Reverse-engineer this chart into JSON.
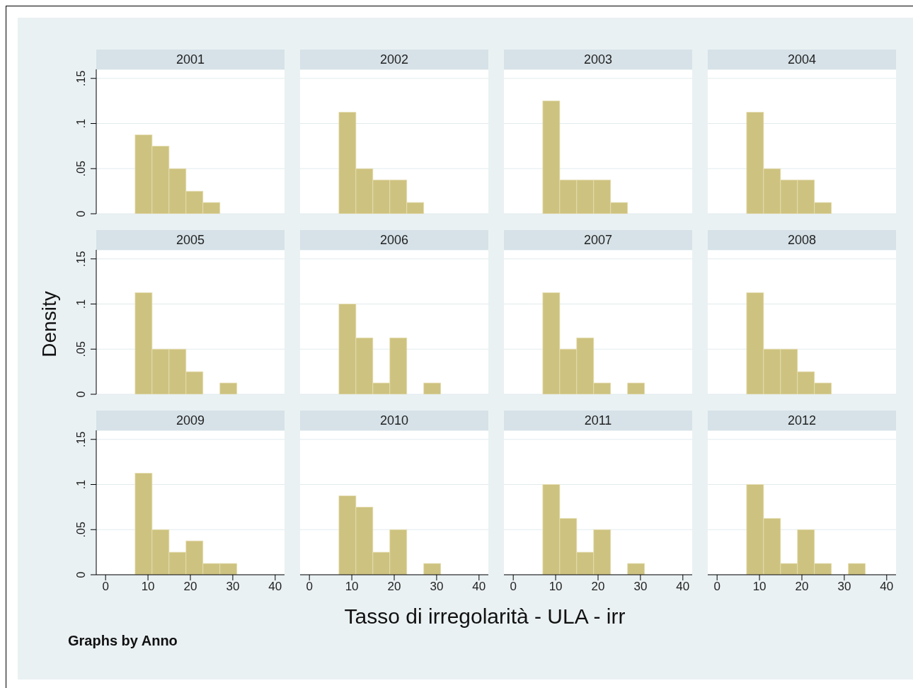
{
  "chart_data": [
    {
      "type": "histogram",
      "title": "2001",
      "bins": [
        7,
        11,
        15,
        19,
        23,
        27,
        31,
        35
      ],
      "values": [
        0.0875,
        0.075,
        0.05,
        0.025,
        0.0125,
        0,
        0
      ],
      "color": "#cdc27f",
      "xlim": [
        -2.2,
        42.2
      ],
      "ylim": [
        0,
        0.16
      ],
      "yticks": [
        0,
        {
          "value": 0.05,
          "label": ".05"
        },
        {
          "value": 0.1,
          "label": ".1"
        },
        {
          "value": 0.15,
          "label": ".15"
        }
      ],
      "grid": "y",
      "tick_labels": "y"
    },
    {
      "type": "histogram",
      "title": "2002",
      "bins": [
        7,
        11,
        15,
        19,
        23,
        27,
        31,
        35
      ],
      "values": [
        0.1125,
        0.05,
        0.0375,
        0.0375,
        0.0125,
        0,
        0
      ],
      "color": "#cdc27f",
      "xlim": [
        -2.2,
        42.2
      ],
      "ylim": [
        0,
        0.16
      ],
      "yticks": [
        0,
        0.05,
        0.1,
        0.15
      ],
      "grid": "y",
      "tick_labels": false
    },
    {
      "type": "histogram",
      "title": "2003",
      "bins": [
        7,
        11,
        15,
        19,
        23,
        27,
        31,
        35
      ],
      "values": [
        0.125,
        0.0375,
        0.0375,
        0.0375,
        0.0125,
        0,
        0
      ],
      "color": "#cdc27f",
      "xlim": [
        -2.2,
        42.2
      ],
      "ylim": [
        0,
        0.16
      ],
      "yticks": [
        0,
        0.05,
        0.1,
        0.15
      ],
      "grid": "y",
      "tick_labels": false
    },
    {
      "type": "histogram",
      "title": "2004",
      "bins": [
        7,
        11,
        15,
        19,
        23,
        27,
        31,
        35
      ],
      "values": [
        0.1125,
        0.05,
        0.0375,
        0.0375,
        0.0125,
        0,
        0
      ],
      "color": "#cdc27f",
      "xlim": [
        -2.2,
        42.2
      ],
      "ylim": [
        0,
        0.16
      ],
      "yticks": [
        0,
        0.05,
        0.1,
        0.15
      ],
      "grid": "y",
      "tick_labels": false
    },
    {
      "type": "histogram",
      "title": "2005",
      "ylabel": "Density",
      "bins": [
        7,
        11,
        15,
        19,
        23,
        27,
        31,
        35
      ],
      "values": [
        0.1125,
        0.05,
        0.05,
        0.025,
        0,
        0.0125,
        0
      ],
      "color": "#cdc27f",
      "xlim": [
        -2.2,
        42.2
      ],
      "ylim": [
        0,
        0.16
      ],
      "yticks": [
        0,
        {
          "value": 0.05,
          "label": ".05"
        },
        {
          "value": 0.1,
          "label": ".1"
        },
        {
          "value": 0.15,
          "label": ".15"
        }
      ],
      "grid": "y",
      "tick_labels": "y"
    },
    {
      "type": "histogram",
      "title": "2006",
      "bins": [
        7,
        11,
        15,
        19,
        23,
        27,
        31,
        35
      ],
      "values": [
        0.1,
        0.0625,
        0.0125,
        0.0625,
        0,
        0.0125,
        0
      ],
      "color": "#cdc27f",
      "xlim": [
        -2.2,
        42.2
      ],
      "ylim": [
        0,
        0.16
      ],
      "yticks": [
        0,
        0.05,
        0.1,
        0.15
      ],
      "grid": "y",
      "tick_labels": false
    },
    {
      "type": "histogram",
      "title": "2007",
      "bins": [
        7,
        11,
        15,
        19,
        23,
        27,
        31,
        35
      ],
      "values": [
        0.1125,
        0.05,
        0.0625,
        0.0125,
        0,
        0.0125,
        0
      ],
      "color": "#cdc27f",
      "xlim": [
        -2.2,
        42.2
      ],
      "ylim": [
        0,
        0.16
      ],
      "yticks": [
        0,
        0.05,
        0.1,
        0.15
      ],
      "grid": "y",
      "tick_labels": false
    },
    {
      "type": "histogram",
      "title": "2008",
      "bins": [
        7,
        11,
        15,
        19,
        23,
        27,
        31,
        35
      ],
      "values": [
        0.1125,
        0.05,
        0.05,
        0.025,
        0.0125,
        0,
        0
      ],
      "color": "#cdc27f",
      "xlim": [
        -2.2,
        42.2
      ],
      "ylim": [
        0,
        0.16
      ],
      "yticks": [
        0,
        0.05,
        0.1,
        0.15
      ],
      "grid": "y",
      "tick_labels": false
    },
    {
      "type": "histogram",
      "title": "2009",
      "annotations": [
        "Graphs by Anno"
      ],
      "bins": [
        7,
        11,
        15,
        19,
        23,
        27,
        31,
        35
      ],
      "values": [
        0.1125,
        0.05,
        0.025,
        0.0375,
        0.0125,
        0.0125,
        0
      ],
      "color": "#cdc27f",
      "xlim": [
        -2.2,
        42.2
      ],
      "xticks": [
        0,
        10,
        20,
        30,
        40
      ],
      "ylim": [
        0,
        0.16
      ],
      "yticks": [
        0,
        {
          "value": 0.05,
          "label": ".05"
        },
        {
          "value": 0.1,
          "label": ".1"
        },
        {
          "value": 0.15,
          "label": ".15"
        }
      ],
      "grid": "y"
    },
    {
      "type": "histogram",
      "title": "2010",
      "xlabel": "Tasso di irregolarità - ULA - irr",
      "bins": [
        7,
        11,
        15,
        19,
        23,
        27,
        31,
        35
      ],
      "values": [
        0.0875,
        0.075,
        0.025,
        0.05,
        0,
        0.0125,
        0
      ],
      "color": "#cdc27f",
      "xlim": [
        -2.2,
        42.2
      ],
      "xticks": [
        0,
        10,
        20,
        30,
        40
      ],
      "ylim": [
        0,
        0.16
      ],
      "yticks": [
        0,
        0.05,
        0.1,
        0.15
      ],
      "grid": "y",
      "tick_labels": "x"
    },
    {
      "type": "histogram",
      "title": "2011",
      "bins": [
        7,
        11,
        15,
        19,
        23,
        27,
        31,
        35
      ],
      "values": [
        0.1,
        0.0625,
        0.025,
        0.05,
        0,
        0.0125,
        0
      ],
      "color": "#cdc27f",
      "xlim": [
        -2.2,
        42.2
      ],
      "xticks": [
        0,
        10,
        20,
        30,
        40
      ],
      "ylim": [
        0,
        0.16
      ],
      "yticks": [
        0,
        0.05,
        0.1,
        0.15
      ],
      "grid": "y",
      "tick_labels": "x"
    },
    {
      "type": "histogram",
      "title": "2012",
      "bins": [
        7,
        11,
        15,
        19,
        23,
        27,
        31,
        35
      ],
      "values": [
        0.1,
        0.0625,
        0.0125,
        0.05,
        0.0125,
        0,
        0.0125
      ],
      "color": "#cdc27f",
      "xlim": [
        -2.2,
        42.2
      ],
      "xticks": [
        0,
        10,
        20,
        30,
        40
      ],
      "ylim": [
        0,
        0.16
      ],
      "yticks": [
        0,
        0.05,
        0.1,
        0.15
      ],
      "grid": "y",
      "tick_labels": "x"
    }
  ]
}
